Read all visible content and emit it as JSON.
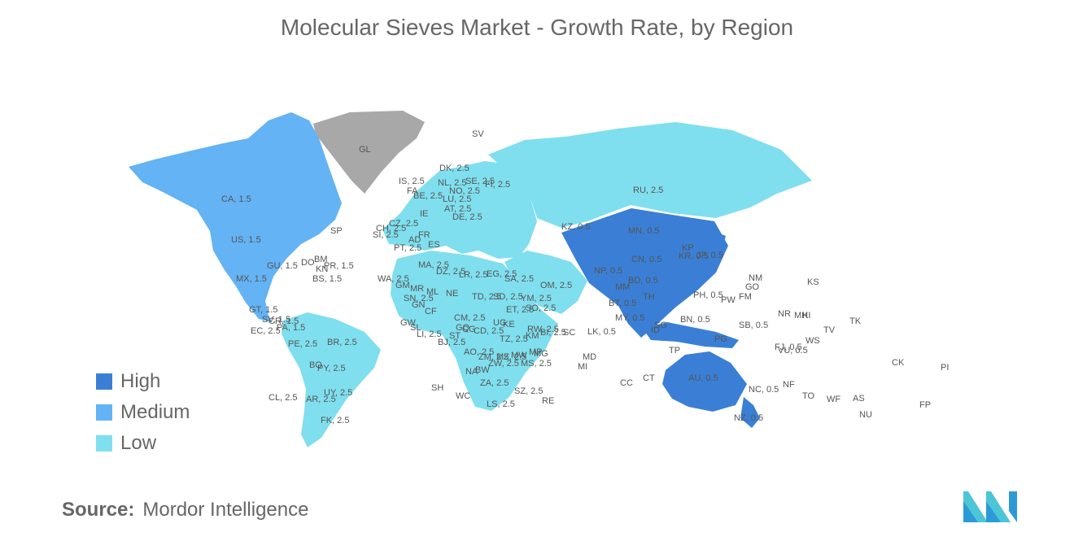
{
  "title": "Molecular Sieves Market - Growth Rate, by Region",
  "colors": {
    "High": "#3a7fd5",
    "Medium": "#64b3f4",
    "Low": "#7fdfee",
    "NoData": "#a8a8a8",
    "Ocean": "#ffffff"
  },
  "legend": [
    {
      "level": "High",
      "label": "High",
      "color": "#3a7fd5"
    },
    {
      "level": "Medium",
      "label": "Medium",
      "color": "#64b3f4"
    },
    {
      "level": "Low",
      "label": "Low",
      "color": "#7fdfee"
    }
  ],
  "regions": {
    "north_america": "Medium",
    "greenland": "NoData",
    "south_america": "Low",
    "europe": "Low",
    "russia_central_asia": "Low",
    "middle_east": "Low",
    "africa": "Low",
    "asia_pacific": "High"
  },
  "map_labels": [
    "CA, 1.5",
    "US, 1.5",
    "MX, 1.5",
    "GU, 1.5",
    "GT, 1.5",
    "SV, 1.5",
    "CR, 1.5",
    "PA, 1.5",
    "EC, 2.5",
    "DO",
    "BM",
    "BS, 1.5",
    "PR, 1.5",
    "KN",
    "SP",
    "GL",
    "SV",
    "BR, 2.5",
    "PE, 2.5",
    "BO",
    "PY, 2.5",
    "UY, 2.5",
    "AR, 2.5",
    "CL, 2.5",
    "FK, 2.5",
    "DK, 2.5",
    "IS, 2.5",
    "FA",
    "NL, 2.5",
    "SE, 2.5",
    "FI, 2.5",
    "NO, 2.5",
    "BE, 2.5",
    "LU, 2.5",
    "IE",
    "AT, 2.5",
    "DE, 2.5",
    "CZ, 2.5",
    "CH, 2.5",
    "SI, 2.5",
    "PT, 2.5",
    "AD",
    "ES",
    "FR",
    "RU, 2.5",
    "KZ, 0.5",
    "MN, 0.5",
    "CN, 0.5",
    "KP",
    "KR, 0.5",
    "JP, 0.5",
    "NP, 0.5",
    "BD, 0.5",
    "BT, 0.5",
    "MM",
    "TH",
    "LK, 0.5",
    "MY, 0.5",
    "SG",
    "BN, 0.5",
    "PH, 0.5",
    "ID",
    "PG",
    "TP",
    "AU, 0.5",
    "NZ, 0.5",
    "NC, 0.5",
    "SB, 0.5",
    "FJ, 0.5",
    "VU, 0.5",
    "WA, 2.5",
    "MA, 2.5",
    "DZ, 2.5",
    "LR, 2.5",
    "EG, 2.5",
    "SA, 2.5",
    "OM, 2.5",
    "YM, 2.5",
    "TD, 2.5",
    "SD, 2.5",
    "ET, 2.5",
    "SO, 2.5",
    "NE",
    "SN, 2.5",
    "GM",
    "MR",
    "GN",
    "ML",
    "GW",
    "SL",
    "LI, 2.5",
    "BJ, 2.5",
    "CM, 2.5",
    "CF",
    "ST",
    "GQ",
    "CG",
    "CD, 2.5",
    "UG",
    "KE",
    "RW, 2.5",
    "TZ, 2.5",
    "AO, 2.5",
    "ZM, 2.5",
    "MZ, 2.5",
    "MW",
    "ZW, 2.5",
    "NA",
    "BW",
    "ZA, 2.5",
    "SZ, 2.5",
    "LS, 2.5",
    "MG",
    "MS, 2.5",
    "KM",
    "BI, 2.5",
    "SC",
    "MD",
    "MI",
    "MP",
    "SH",
    "WC",
    "RE",
    "CC",
    "CT",
    "NM",
    "GO",
    "KS",
    "PW",
    "FM",
    "NR",
    "MH",
    "KI",
    "TV",
    "TK",
    "WS",
    "NF",
    "TO",
    "WF",
    "AS",
    "NU",
    "CK",
    "PI",
    "FP"
  ],
  "source_label": "Source:",
  "source_value": "Mordor Intelligence"
}
